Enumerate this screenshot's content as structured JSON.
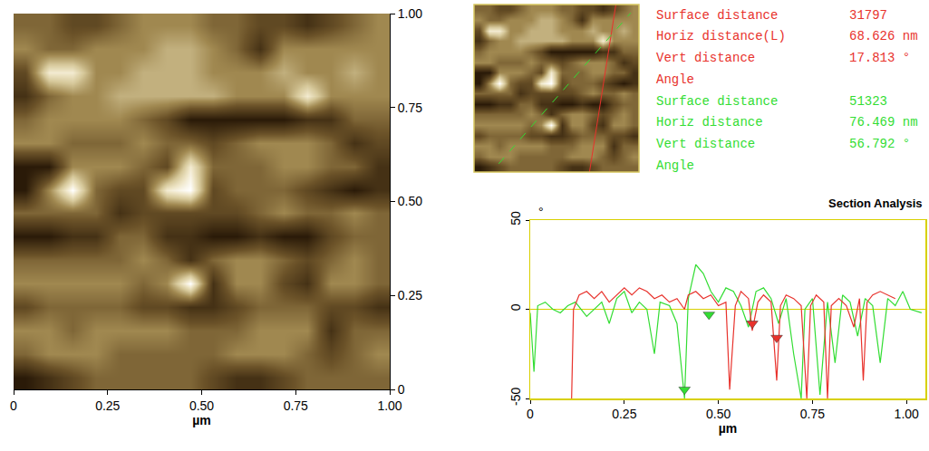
{
  "chart_data": [
    {
      "type": "heatmap",
      "x_label": "µm",
      "x": [
        0.03125,
        0.09375,
        0.15625,
        0.21875,
        0.28125,
        0.34375,
        0.40625,
        0.46875,
        0.53125,
        0.59375,
        0.65625,
        0.71875,
        0.78125,
        0.84375,
        0.90625,
        0.96875
      ],
      "y": [
        0.96875,
        0.90625,
        0.84375,
        0.78125,
        0.71875,
        0.65625,
        0.59375,
        0.53125,
        0.46875,
        0.40625,
        0.34375,
        0.28125,
        0.21875,
        0.15625,
        0.09375,
        0.03125
      ],
      "z": [
        [
          5,
          5,
          4,
          4,
          5,
          6,
          6,
          6,
          5,
          5,
          4,
          4,
          3,
          4,
          5,
          6
        ],
        [
          6,
          5,
          5,
          6,
          6,
          6,
          7,
          7,
          6,
          5,
          3,
          6,
          6,
          6,
          6,
          6
        ],
        [
          4,
          9,
          9,
          6,
          6,
          7,
          7,
          7,
          6,
          6,
          6,
          7,
          6,
          6,
          7,
          6
        ],
        [
          3,
          5,
          6,
          6,
          7,
          7,
          7,
          7,
          7,
          6,
          6,
          6,
          9,
          6,
          6,
          6
        ],
        [
          5,
          6,
          6,
          6,
          6,
          5,
          4,
          2,
          2,
          2,
          2,
          2,
          3,
          3,
          5,
          5
        ],
        [
          6,
          6,
          5,
          5,
          5,
          6,
          5,
          5,
          4,
          5,
          6,
          6,
          6,
          5,
          3,
          4
        ],
        [
          2,
          2,
          6,
          6,
          6,
          5,
          4,
          9,
          5,
          5,
          5,
          6,
          6,
          5,
          5,
          3
        ],
        [
          2,
          6,
          10,
          5,
          4,
          4,
          9,
          10,
          4,
          5,
          5,
          5,
          4,
          3,
          2,
          3
        ],
        [
          5,
          5,
          5,
          5,
          3,
          4,
          4,
          4,
          4,
          4,
          5,
          6,
          5,
          5,
          6,
          5
        ],
        [
          2,
          2,
          3,
          3,
          5,
          5,
          3,
          3,
          2,
          2,
          3,
          2,
          2,
          4,
          5,
          5
        ],
        [
          5,
          5,
          5,
          5,
          5,
          6,
          5,
          3,
          5,
          6,
          6,
          5,
          4,
          5,
          6,
          5
        ],
        [
          6,
          6,
          6,
          6,
          6,
          5,
          6,
          10,
          3,
          6,
          6,
          4,
          3,
          6,
          6,
          5
        ],
        [
          4,
          5,
          5,
          5,
          5,
          4,
          4,
          3,
          3,
          4,
          5,
          5,
          5,
          4,
          4,
          3
        ],
        [
          6,
          6,
          5,
          6,
          6,
          6,
          6,
          5,
          5,
          5,
          6,
          6,
          6,
          3,
          5,
          5
        ],
        [
          5,
          6,
          6,
          6,
          5,
          5,
          5,
          5,
          5,
          6,
          6,
          6,
          5,
          4,
          5,
          6
        ],
        [
          2,
          3,
          4,
          5,
          5,
          5,
          5,
          5,
          4,
          3,
          3,
          4,
          5,
          5,
          5,
          5
        ]
      ],
      "xlim": [
        0,
        1
      ],
      "ylim": [
        0,
        1
      ],
      "xticks": [
        0,
        0.25,
        {
          "value": 0.5,
          "label": "0.50"
        },
        0.75,
        {
          "value": 1,
          "label": "1.00"
        }
      ],
      "yticks": [
        0,
        0.25,
        {
          "value": 0.5,
          "label": "0.50"
        },
        0.75,
        {
          "value": 1,
          "label": "1.00"
        }
      ]
    },
    {
      "type": "line",
      "title": "Section Analysis",
      "x_label": "µm",
      "y_label": "°",
      "xlim": [
        0,
        1.05
      ],
      "ylim": [
        -50,
        50
      ],
      "xticks": [
        0,
        0.25,
        {
          "value": 0.5,
          "label": "0.50"
        },
        0.75,
        {
          "value": 1,
          "label": "1.00"
        }
      ],
      "yticks": [
        -50,
        0,
        50
      ],
      "series": [
        {
          "color": "#33dd33",
          "x": [
            0,
            0.01,
            0.02,
            0.04,
            0.06,
            0.08,
            0.1,
            0.12,
            0.15,
            0.17,
            0.19,
            0.21,
            0.23,
            0.25,
            0.27,
            0.29,
            0.31,
            0.33,
            0.345,
            0.37,
            0.39,
            0.41,
            0.42,
            0.44,
            0.46,
            0.48,
            0.5,
            0.52,
            0.54,
            0.56,
            0.58,
            0.6,
            0.62,
            0.64,
            0.66,
            0.68,
            0.7,
            0.72,
            0.73,
            0.75,
            0.77,
            0.79,
            0.81,
            0.83,
            0.85,
            0.87,
            0.89,
            0.91,
            0.93,
            0.95,
            0.97,
            0.99,
            1.01,
            1.04
          ],
          "values": [
            -2,
            -35,
            2,
            4,
            0,
            -2,
            2,
            4,
            -4,
            0,
            4,
            -8,
            6,
            10,
            -2,
            4,
            0,
            -25,
            4,
            2,
            -8,
            -50,
            6,
            25,
            20,
            10,
            4,
            12,
            10,
            2,
            -10,
            10,
            12,
            6,
            -8,
            6,
            -25,
            -50,
            0,
            6,
            -48,
            4,
            -30,
            8,
            4,
            -15,
            6,
            2,
            -30,
            6,
            2,
            10,
            0,
            -2
          ],
          "cursors": [
            {
              "x": 0.41,
              "y": -45
            },
            {
              "x": 0.475,
              "y": -3
            }
          ]
        },
        {
          "color": "#e8322c",
          "x": [
            0.11,
            0.115,
            0.13,
            0.15,
            0.17,
            0.19,
            0.21,
            0.23,
            0.25,
            0.27,
            0.29,
            0.31,
            0.33,
            0.35,
            0.37,
            0.39,
            0.41,
            0.42,
            0.44,
            0.46,
            0.48,
            0.5,
            0.52,
            0.53,
            0.545,
            0.56,
            0.58,
            0.59,
            0.605,
            0.62,
            0.64,
            0.655,
            0.665,
            0.68,
            0.7,
            0.72,
            0.735,
            0.745,
            0.76,
            0.78,
            0.79,
            0.8,
            0.82,
            0.84,
            0.86,
            0.875,
            0.885,
            0.895,
            0.91,
            0.93,
            0.95,
            0.97
          ],
          "values": [
            -50,
            0,
            8,
            10,
            6,
            10,
            4,
            8,
            12,
            8,
            12,
            10,
            6,
            8,
            4,
            6,
            0,
            8,
            10,
            6,
            8,
            2,
            4,
            -45,
            2,
            10,
            6,
            -12,
            4,
            8,
            4,
            -40,
            2,
            8,
            6,
            2,
            -50,
            2,
            8,
            4,
            -50,
            2,
            6,
            2,
            -10,
            6,
            -40,
            4,
            8,
            10,
            8,
            6
          ],
          "cursors": [
            {
              "x": 0.59,
              "y": -8
            },
            {
              "x": 0.655,
              "y": -16
            }
          ]
        }
      ],
      "annotations": [
        {
          "color": "#e8322c",
          "rows": [
            {
              "label": "Surface distance",
              "value": "31797"
            },
            {
              "label": "Horiz distance(L)",
              "value": "68.626 nm"
            },
            {
              "label": "Vert distance",
              "value": "17.813 °"
            },
            {
              "label": "Angle"
            }
          ]
        },
        {
          "color": "#33dd33",
          "rows": [
            {
              "label": "Surface distance",
              "value": "51323"
            },
            {
              "label": "Horiz distance",
              "value": "76.469 nm"
            },
            {
              "label": "Vert distance",
              "value": "56.792 °"
            },
            {
              "label": "Angle"
            }
          ]
        }
      ]
    }
  ]
}
